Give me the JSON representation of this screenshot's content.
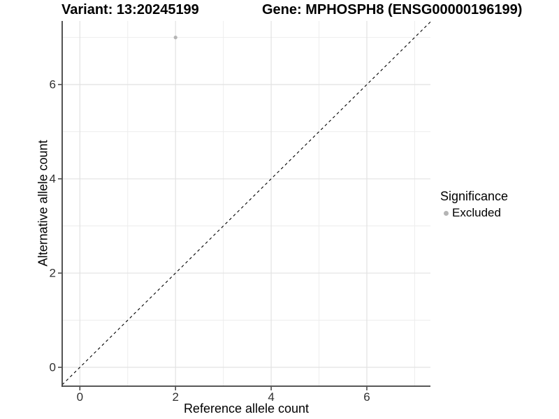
{
  "chart_data": {
    "type": "scatter",
    "titles": {
      "left": "Variant: 13:20245199",
      "right": "Gene: MPHOSPH8 (ENSG00000196199)"
    },
    "xlabel": "Reference allele count",
    "ylabel": "Alternative allele count",
    "xlim": [
      -0.37,
      7.33
    ],
    "ylim": [
      -0.4,
      7.35
    ],
    "xticks": [
      0,
      2,
      4,
      6
    ],
    "yticks": [
      0,
      2,
      4,
      6
    ],
    "xminor": [
      1,
      3,
      5,
      7
    ],
    "yminor": [
      1,
      3,
      5,
      7
    ],
    "grid": true,
    "identity_line": {
      "style": "dashed",
      "slope": 1,
      "intercept": 0,
      "color": "#000000"
    },
    "series": [
      {
        "name": "Excluded",
        "color": "#b5b5b5",
        "points": [
          {
            "x": 2,
            "y": 7
          }
        ]
      }
    ],
    "legend": {
      "position": "right",
      "title": "Significance",
      "items": [
        {
          "label": "Excluded",
          "color": "#b5b5b5"
        }
      ]
    }
  },
  "style": {
    "grid_major_color": "#e2e2e2",
    "grid_minor_color": "#ededed",
    "axis_line_color": "#404040",
    "tick_mark_color": "#333333",
    "tick_text_color": "#303030",
    "point_radius": 2.6
  }
}
